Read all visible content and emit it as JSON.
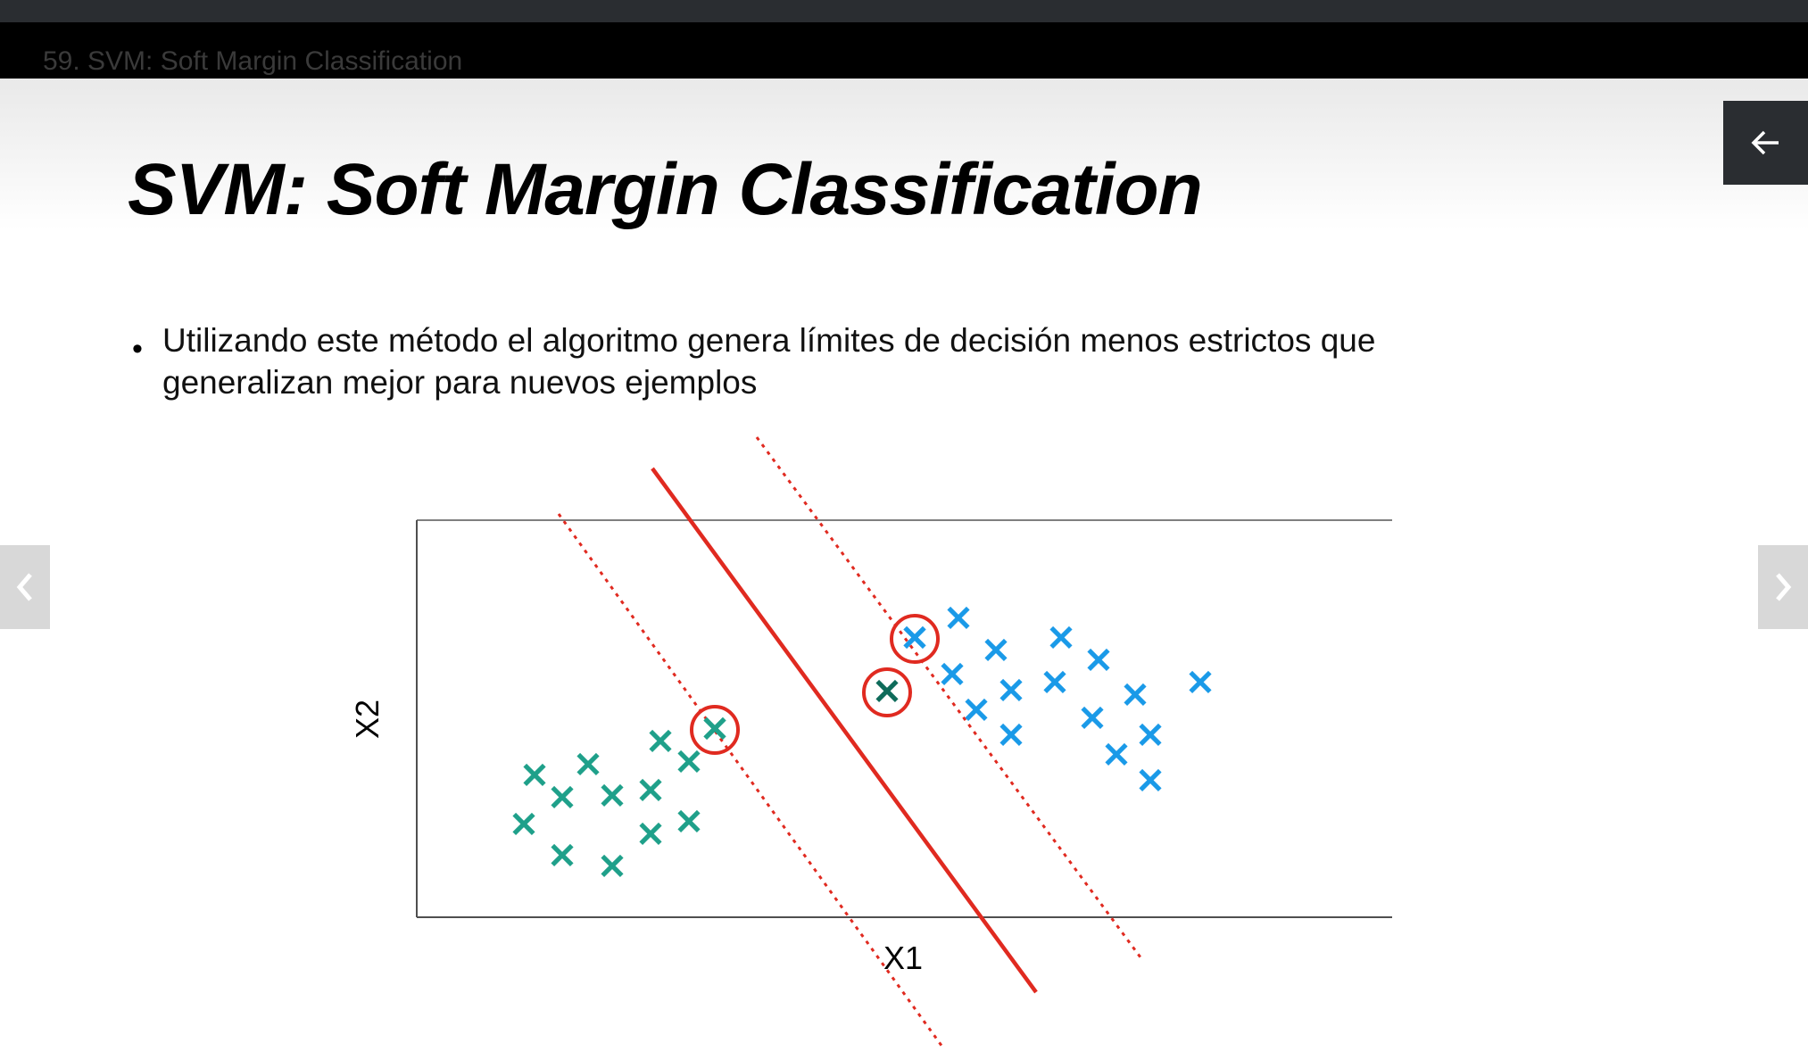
{
  "player": {
    "lecture_title": "59. SVM: Soft Margin Classification"
  },
  "slide": {
    "title": "SVM: Soft Margin Classification",
    "bullet_marker": "•",
    "bullet_text": "Utilizando este método el algoritmo genera límites de decisión menos estrictos que generalizan mejor para nuevos ejemplos"
  },
  "diagram": {
    "xlabel": "X1",
    "ylabel": "X2",
    "x_marker": "✕",
    "colors": {
      "teal": "#1fa08a",
      "blue": "#1a9ae8",
      "dark_teal": "#0e6b5a",
      "red": "#e02a20",
      "frame": "#7f7f7f"
    }
  },
  "controls": {
    "back_icon": "arrow-left-icon",
    "prev_icon": "chevron-left-icon",
    "next_icon": "chevron-right-icon"
  }
}
